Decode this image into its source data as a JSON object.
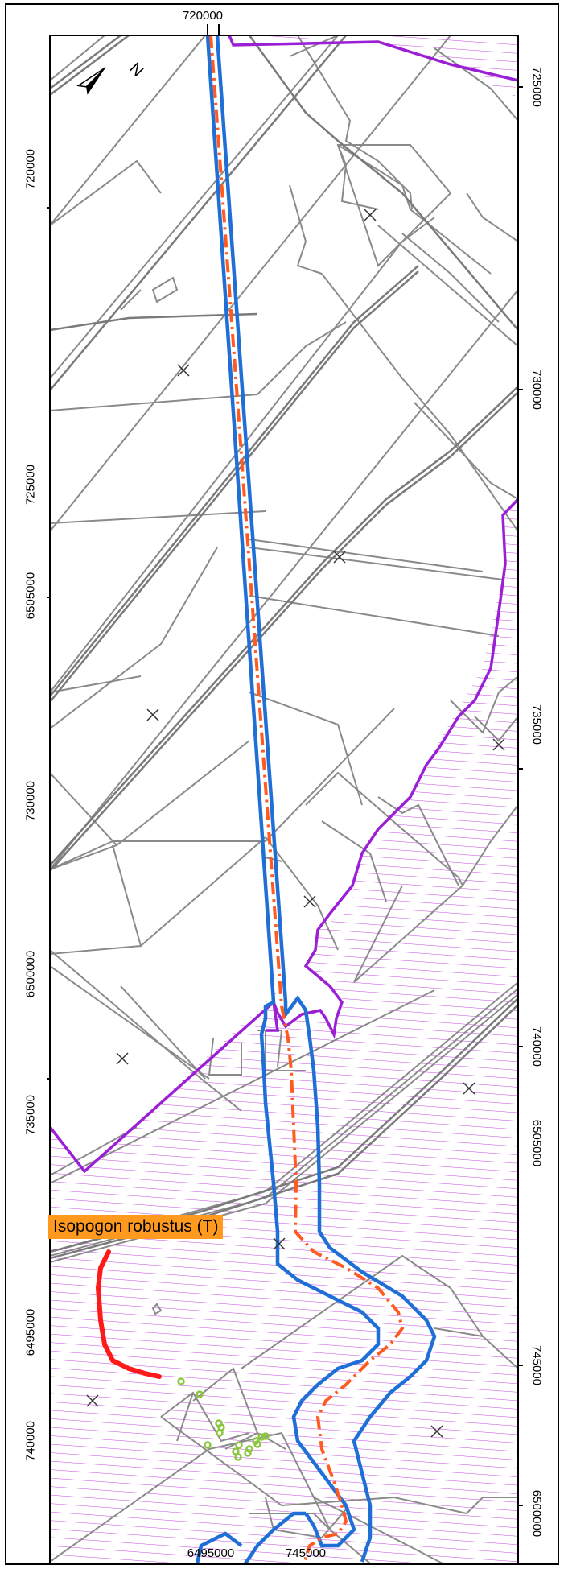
{
  "map": {
    "colors": {
      "frame": "#000000",
      "cadastre": "#8a8a8a",
      "road_casing": "#7a7a7a",
      "reserve_boundary": "#9b1fd4",
      "reserve_hatch": "#c447e0",
      "corridor": "#1f6fd6",
      "centerline": "#ff5a1f",
      "species_line": "#ff1a1a",
      "species_points": "#8cc63f",
      "label_background": "#ff9a1f"
    },
    "north_arrow": {
      "letter": "N"
    },
    "species_label": "Isopogon robustus (T)",
    "grid_labels": {
      "top": [
        "720000"
      ],
      "bottom": [
        "6495000",
        "745000"
      ],
      "left": [
        "720000",
        "725000",
        "6505000",
        "730000",
        "6500000",
        "735000",
        "6495000",
        "740000"
      ],
      "right": [
        "725000",
        "730000",
        "735000",
        "740000",
        "6505000",
        "745000",
        "6500000"
      ]
    },
    "point_markers": {
      "symbol": "×",
      "count": 11
    }
  }
}
